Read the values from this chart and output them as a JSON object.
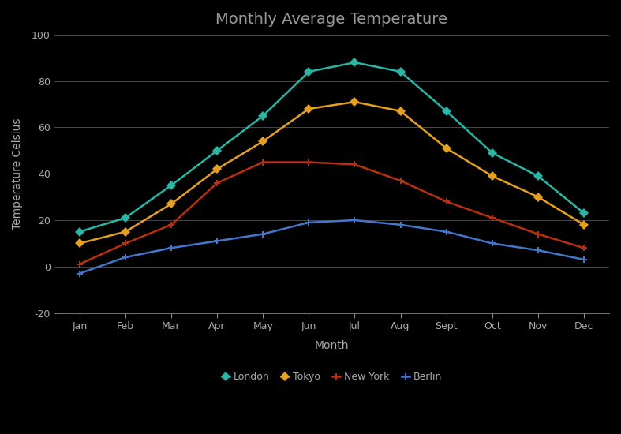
{
  "title": "Monthly Average Temperature",
  "xlabel": "Month",
  "ylabel": "Temperature Celsius",
  "months": [
    "Jan",
    "Feb",
    "Mar",
    "Apr",
    "May",
    "Jun",
    "Jul",
    "Aug",
    "Sept",
    "Oct",
    "Nov",
    "Dec"
  ],
  "series": {
    "London": {
      "values": [
        15,
        21,
        35,
        50,
        65,
        84,
        88,
        84,
        67,
        49,
        39,
        23
      ],
      "color": "#2ab5a5",
      "marker": "D"
    },
    "Tokyo": {
      "values": [
        10,
        15,
        27,
        42,
        54,
        68,
        71,
        67,
        51,
        39,
        30,
        18
      ],
      "color": "#e5a020",
      "marker": "D"
    },
    "New York": {
      "values": [
        1,
        10,
        18,
        36,
        45,
        45,
        44,
        37,
        28,
        21,
        14,
        8
      ],
      "color": "#b83010",
      "marker": "P"
    },
    "Berlin": {
      "values": [
        -3,
        4,
        8,
        11,
        14,
        19,
        20,
        18,
        15,
        10,
        7,
        3
      ],
      "color": "#4477cc",
      "marker": "P"
    }
  },
  "ylim": [
    -20,
    100
  ],
  "yticks": [
    -20,
    0,
    20,
    40,
    60,
    80,
    100
  ],
  "background_color": "#000000",
  "plot_bg_color": "#000000",
  "grid_color": "#888888",
  "text_color": "#aaaaaa",
  "title_color": "#999999",
  "title_fontsize": 14,
  "label_fontsize": 10,
  "tick_fontsize": 9,
  "legend_fontsize": 9,
  "line_width": 1.8,
  "marker_size": 6
}
